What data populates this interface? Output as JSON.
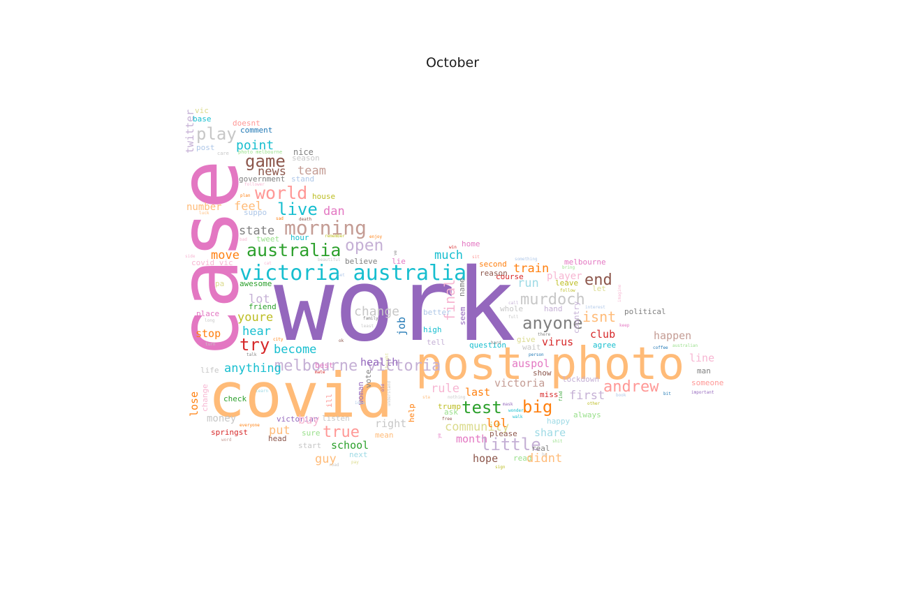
{
  "title": "October",
  "palette": {
    "pink": "#e377c2",
    "purple": "#9467bd",
    "orange_light": "#ffbb78",
    "cyan": "#17becf",
    "salmon": "#ff9896",
    "brown": "#8c564b",
    "green": "#2ca02c",
    "red": "#d62728",
    "blue": "#1f77b4",
    "gray": "#7f7f7f",
    "silver": "#c7c7c7",
    "lilac": "#c5b0d5",
    "olive": "#bcbd22",
    "khaki": "#dbdb8d",
    "tan": "#c49c94",
    "light_blue": "#aec7e8",
    "light_cyan": "#9edae5",
    "light_green": "#98df8a",
    "rose": "#f7b6d2",
    "orange": "#ff7f0e"
  },
  "words": [
    {
      "text": "work",
      "color": "#9467bd"
    },
    {
      "text": "case",
      "color": "#e377c2"
    },
    {
      "text": "covid",
      "color": "#ffbb78"
    },
    {
      "text": "post photo",
      "color": "#ffbb78"
    },
    {
      "text": "victoria australia",
      "color": "#17becf"
    },
    {
      "text": "australia",
      "color": "#2ca02c"
    },
    {
      "text": "morning",
      "color": "#c49c94"
    },
    {
      "text": "world",
      "color": "#ff9896"
    },
    {
      "text": "game",
      "color": "#8c564b"
    },
    {
      "text": "play",
      "color": "#c7c7c7"
    },
    {
      "text": "point",
      "color": "#17becf"
    },
    {
      "text": "news",
      "color": "#8c564b"
    },
    {
      "text": "team",
      "color": "#c49c94"
    },
    {
      "text": "live",
      "color": "#17becf"
    },
    {
      "text": "dan",
      "color": "#e377c2"
    },
    {
      "text": "feel",
      "color": "#ffbb78"
    },
    {
      "text": "number",
      "color": "#ffbb78"
    },
    {
      "text": "state",
      "color": "#7f7f7f"
    },
    {
      "text": "open",
      "color": "#c5b0d5"
    },
    {
      "text": "move",
      "color": "#ff7f0e"
    },
    {
      "text": "twitter",
      "color": "#c5b0d5"
    },
    {
      "text": "vic",
      "color": "#dbdb8d"
    },
    {
      "text": "base",
      "color": "#17becf"
    },
    {
      "text": "doesnt",
      "color": "#ff9896"
    },
    {
      "text": "comment",
      "color": "#1f77b4"
    },
    {
      "text": "post",
      "color": "#aec7e8"
    },
    {
      "text": "care",
      "color": "#c7c7c7"
    },
    {
      "text": "photo melbourne",
      "color": "#98df8a"
    },
    {
      "text": "nice",
      "color": "#7f7f7f"
    },
    {
      "text": "season",
      "color": "#c7c7c7"
    },
    {
      "text": "government",
      "color": "#7f7f7f"
    },
    {
      "text": "stand",
      "color": "#aec7e8"
    },
    {
      "text": "follower",
      "color": "#f7b6d2"
    },
    {
      "text": "house",
      "color": "#bcbd22"
    },
    {
      "text": "plan",
      "color": "#ff7f0e"
    },
    {
      "text": "suppo",
      "color": "#aec7e8"
    },
    {
      "text": "luck",
      "color": "#ffbb78"
    },
    {
      "text": "sad",
      "color": "#ff7f0e"
    },
    {
      "text": "death",
      "color": "#8c564b"
    },
    {
      "text": "remember",
      "color": "#bcbd22"
    },
    {
      "text": "tweet",
      "color": "#98df8a"
    },
    {
      "text": "hour",
      "color": "#17becf"
    },
    {
      "text": "bad",
      "color": "#f7b6d2"
    },
    {
      "text": "enjoy",
      "color": "#ff7f0e"
    },
    {
      "text": "side",
      "color": "#f7b6d2"
    },
    {
      "text": "covid vic",
      "color": "#f7b6d2"
    },
    {
      "text": "cat",
      "color": "#f7b6d2"
    },
    {
      "text": "beautiful",
      "color": "#c7c7c7"
    },
    {
      "text": "pa",
      "color": "#dbdb8d"
    },
    {
      "text": "awesome",
      "color": "#2ca02c"
    },
    {
      "text": "set",
      "color": "#aec7e8"
    },
    {
      "text": "believe",
      "color": "#7f7f7f"
    },
    {
      "text": "lie",
      "color": "#e377c2"
    },
    {
      "text": "ve",
      "color": "#7f7f7f"
    },
    {
      "text": "lot",
      "color": "#c5b0d5"
    },
    {
      "text": "friend",
      "color": "#2ca02c"
    },
    {
      "text": "youre",
      "color": "#bcbd22"
    },
    {
      "text": "place",
      "color": "#e377c2"
    },
    {
      "text": "long",
      "color": "#c7c7c7"
    },
    {
      "text": "hear",
      "color": "#17becf"
    },
    {
      "text": "stop",
      "color": "#ff7f0e"
    },
    {
      "text": "turn",
      "color": "#c7c7c7"
    },
    {
      "text": "try",
      "color": "#d62728"
    },
    {
      "text": "city",
      "color": "#ff7f0e"
    },
    {
      "text": "talk",
      "color": "#7f7f7f"
    },
    {
      "text": "become",
      "color": "#17becf"
    },
    {
      "text": "melbourne victoria",
      "color": "#c5b0d5"
    },
    {
      "text": "best",
      "color": "#e377c2"
    },
    {
      "text": "mate",
      "color": "#d62728"
    },
    {
      "text": "anything",
      "color": "#17becf"
    },
    {
      "text": "life",
      "color": "#c7c7c7"
    },
    {
      "text": "lose",
      "color": "#ff7f0e"
    },
    {
      "text": "change",
      "color": "#f7b6d2"
    },
    {
      "text": "check",
      "color": "#2ca02c"
    },
    {
      "text": "learn",
      "color": "#9edae5"
    },
    {
      "text": "money",
      "color": "#c7c7c7"
    },
    {
      "text": "everyone",
      "color": "#ff7f0e"
    },
    {
      "text": "springst",
      "color": "#d62728"
    },
    {
      "text": "word",
      "color": "#c49c94"
    },
    {
      "text": "ill",
      "color": "#ff9896"
    },
    {
      "text": "woman",
      "color": "#9467bd"
    },
    {
      "text": "vote",
      "color": "#7f7f7f"
    },
    {
      "text": "idea",
      "color": "#aec7e8"
    },
    {
      "text": "listen",
      "color": "#c7c7c7"
    },
    {
      "text": "victorian",
      "color": "#9467bd"
    },
    {
      "text": "buy",
      "color": "#f7b6d2"
    },
    {
      "text": "put",
      "color": "#ffbb78"
    },
    {
      "text": "sure",
      "color": "#98df8a"
    },
    {
      "text": "head",
      "color": "#8c564b"
    },
    {
      "text": "true",
      "color": "#ff9896"
    },
    {
      "text": "right",
      "color": "#c7c7c7"
    },
    {
      "text": "start",
      "color": "#c7c7c7"
    },
    {
      "text": "school",
      "color": "#2ca02c"
    },
    {
      "text": "mean",
      "color": "#ffbb78"
    },
    {
      "text": "guy",
      "color": "#ffbb78"
    },
    {
      "text": "next",
      "color": "#9edae5"
    },
    {
      "text": "pay",
      "color": "#dbdb8d"
    },
    {
      "text": "road",
      "color": "#c7c7c7"
    },
    {
      "text": "health",
      "color": "#9467bd"
    },
    {
      "text": "help",
      "color": "#ff7f0e"
    },
    {
      "text": "understand",
      "color": "#c7c7c7"
    },
    {
      "text": "change",
      "color": "#c7c7c7"
    },
    {
      "text": "job",
      "color": "#1f77b4"
    },
    {
      "text": "family",
      "color": "#7f7f7f"
    },
    {
      "text": "least",
      "color": "#c7c7c7"
    },
    {
      "text": "ok",
      "color": "#8c564b"
    },
    {
      "text": "final",
      "color": "#f7b6d2"
    },
    {
      "text": "much",
      "color": "#17becf"
    },
    {
      "text": "home",
      "color": "#e377c2"
    },
    {
      "text": "win",
      "color": "#d62728"
    },
    {
      "text": "sit",
      "color": "#ff9896"
    },
    {
      "text": "second",
      "color": "#ff7f0e"
    },
    {
      "text": "reason",
      "color": "#8c564b"
    },
    {
      "text": "course",
      "color": "#d62728"
    },
    {
      "text": "name",
      "color": "#7f7f7f"
    },
    {
      "text": "seem",
      "color": "#9467bd"
    },
    {
      "text": "better",
      "color": "#aec7e8"
    },
    {
      "text": "high",
      "color": "#17becf"
    },
    {
      "text": "tell",
      "color": "#c5b0d5"
    },
    {
      "text": "question",
      "color": "#17becf"
    },
    {
      "text": "hard",
      "color": "#7f7f7f"
    },
    {
      "text": "rule",
      "color": "#f7b6d2"
    },
    {
      "text": "test",
      "color": "#2ca02c"
    },
    {
      "text": "last",
      "color": "#ff7f0e"
    },
    {
      "text": "victoria",
      "color": "#c49c94"
    },
    {
      "text": "trump",
      "color": "#bcbd22"
    },
    {
      "text": "ask",
      "color": "#98df8a"
    },
    {
      "text": "sta",
      "color": "#ffbb78"
    },
    {
      "text": "nothing",
      "color": "#c7c7c7"
    },
    {
      "text": "free",
      "color": "#8c564b"
    },
    {
      "text": "community",
      "color": "#dbdb8d"
    },
    {
      "text": "month",
      "color": "#e377c2"
    },
    {
      "text": "lol",
      "color": "#ff7f0e"
    },
    {
      "text": "please",
      "color": "#8c564b"
    },
    {
      "text": "little",
      "color": "#c5b0d5"
    },
    {
      "text": "hope",
      "color": "#8c564b"
    },
    {
      "text": "read",
      "color": "#98df8a"
    },
    {
      "text": "ye",
      "color": "#e377c2"
    },
    {
      "text": "mask",
      "color": "#9467bd"
    },
    {
      "text": "wonder",
      "color": "#17becf"
    },
    {
      "text": "walk",
      "color": "#17becf"
    },
    {
      "text": "train",
      "color": "#ff7f0e"
    },
    {
      "text": "run",
      "color": "#9edae5"
    },
    {
      "text": "call",
      "color": "#c5b0d5"
    },
    {
      "text": "full",
      "color": "#c7c7c7"
    },
    {
      "text": "whole",
      "color": "#c7c7c7"
    },
    {
      "text": "anyone",
      "color": "#7f7f7f"
    },
    {
      "text": "give",
      "color": "#dbdb8d"
    },
    {
      "text": "there",
      "color": "#7f7f7f"
    },
    {
      "text": "virus",
      "color": "#d62728"
    },
    {
      "text": "wait",
      "color": "#c7c7c7"
    },
    {
      "text": "person",
      "color": "#1f77b4"
    },
    {
      "text": "auspol",
      "color": "#e377c2"
    },
    {
      "text": "show",
      "color": "#8c564b"
    },
    {
      "text": "miss",
      "color": "#d62728"
    },
    {
      "text": "big",
      "color": "#ff7f0e"
    },
    {
      "text": "happy",
      "color": "#9edae5"
    },
    {
      "text": "share",
      "color": "#9edae5"
    },
    {
      "text": "real",
      "color": "#7f7f7f"
    },
    {
      "text": "didnt",
      "color": "#ffbb78"
    },
    {
      "text": "he",
      "color": "#c7c7c7"
    },
    {
      "text": "sign",
      "color": "#bcbd22"
    },
    {
      "text": "shit",
      "color": "#98df8a"
    },
    {
      "text": "murdoch",
      "color": "#c7c7c7"
    },
    {
      "text": "melbourne",
      "color": "#e377c2"
    },
    {
      "text": "something",
      "color": "#aec7e8"
    },
    {
      "text": "bring",
      "color": "#98df8a"
    },
    {
      "text": "player",
      "color": "#f7b6d2"
    },
    {
      "text": "leave",
      "color": "#bcbd22"
    },
    {
      "text": "end",
      "color": "#8c564b"
    },
    {
      "text": "let",
      "color": "#dbdb8d"
    },
    {
      "text": "follow",
      "color": "#bcbd22"
    },
    {
      "text": "interest",
      "color": "#aec7e8"
    },
    {
      "text": "imagine",
      "color": "#f7b6d2"
    },
    {
      "text": "hand",
      "color": "#c5b0d5"
    },
    {
      "text": "country",
      "color": "#c5b0d5"
    },
    {
      "text": "isnt",
      "color": "#ffbb78"
    },
    {
      "text": "keep",
      "color": "#e377c2"
    },
    {
      "text": "political",
      "color": "#7f7f7f"
    },
    {
      "text": "club",
      "color": "#d62728"
    },
    {
      "text": "happen",
      "color": "#c49c94"
    },
    {
      "text": "agree",
      "color": "#17becf"
    },
    {
      "text": "australian",
      "color": "#98df8a"
    },
    {
      "text": "coffee",
      "color": "#1f77b4"
    },
    {
      "text": "line",
      "color": "#f7b6d2"
    },
    {
      "text": "man",
      "color": "#7f7f7f"
    },
    {
      "text": "andrew",
      "color": "#ff9896"
    },
    {
      "text": "lockdown",
      "color": "#c5b0d5"
    },
    {
      "text": "someone",
      "color": "#ff9896"
    },
    {
      "text": "first",
      "color": "#c5b0d5"
    },
    {
      "text": "find",
      "color": "#2ca02c"
    },
    {
      "text": "book",
      "color": "#aec7e8"
    },
    {
      "text": "bit",
      "color": "#1f77b4"
    },
    {
      "text": "important",
      "color": "#9467bd"
    },
    {
      "text": "other",
      "color": "#bcbd22"
    },
    {
      "text": "always",
      "color": "#98df8a"
    },
    {
      "text": "old",
      "color": "#9467bd"
    },
    {
      "text": "thought",
      "color": "#dbdb8d"
    },
    {
      "text": "age",
      "color": "#dbdb8d"
    }
  ]
}
